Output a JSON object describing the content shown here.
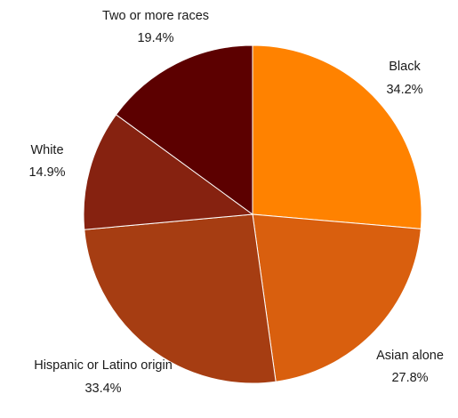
{
  "chart_data": {
    "type": "pie",
    "start_angle": "12 o'clock",
    "direction": "clockwise",
    "slices": [
      {
        "label": "Black",
        "value": 34.2,
        "display": "34.2%",
        "color": "#FF8200"
      },
      {
        "label": "Asian alone",
        "value": 27.8,
        "display": "27.8%",
        "color": "#D95F0E"
      },
      {
        "label": "Hispanic or Latino origin",
        "value": 33.4,
        "display": "33.4%",
        "color": "#A63D12"
      },
      {
        "label": "White",
        "value": 14.9,
        "display": "14.9%",
        "color": "#862210"
      },
      {
        "label": "Two or more races",
        "value": 19.4,
        "display": "19.4%",
        "color": "#5C0000"
      }
    ]
  }
}
